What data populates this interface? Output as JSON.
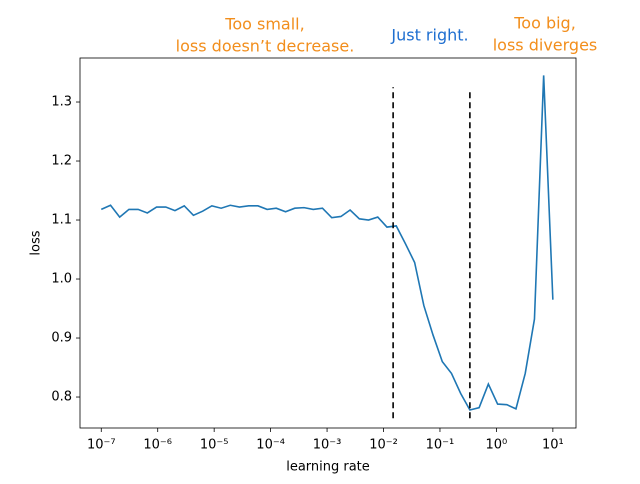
{
  "chart_data": {
    "type": "line",
    "xlabel": "learning rate",
    "ylabel": "loss",
    "xscale": "log",
    "xlim": [
      4.2e-08,
      25.7
    ],
    "ylim": [
      0.7475,
      1.3746
    ],
    "xticks": [
      {
        "value": 1e-07,
        "label": "10⁻⁷"
      },
      {
        "value": 1e-06,
        "label": "10⁻⁶"
      },
      {
        "value": 1e-05,
        "label": "10⁻⁵"
      },
      {
        "value": 0.0001,
        "label": "10⁻⁴"
      },
      {
        "value": 0.001,
        "label": "10⁻³"
      },
      {
        "value": 0.01,
        "label": "10⁻²"
      },
      {
        "value": 0.1,
        "label": "10⁻¹"
      },
      {
        "value": 1,
        "label": "10⁰"
      },
      {
        "value": 10,
        "label": "10¹"
      }
    ],
    "yticks": [
      0.8,
      0.9,
      {
        "value": 1,
        "label": "1.0"
      },
      1.1,
      1.2,
      1.3
    ],
    "grid": false,
    "x": [
      1e-07,
      1.46e-07,
      2.12e-07,
      3.09e-07,
      4.5e-07,
      6.55e-07,
      9.54e-07,
      1.39e-06,
      2.02e-06,
      2.95e-06,
      4.29e-06,
      6.25e-06,
      9.1e-06,
      1.33e-05,
      1.93e-05,
      2.81e-05,
      4.09e-05,
      5.96e-05,
      8.68e-05,
      0.000126,
      0.000184,
      0.000268,
      0.000391,
      0.000569,
      0.000829,
      0.00121,
      0.00176,
      0.00256,
      0.00373,
      0.00543,
      0.00791,
      0.0115,
      0.0168,
      0.0244,
      0.0356,
      0.0518,
      0.0754,
      0.11,
      0.16,
      0.233,
      0.339,
      0.494,
      0.72,
      1.05,
      1.53,
      2.22,
      3.24,
      4.72,
      6.87,
      10
    ],
    "series": [
      {
        "color": "#1f77b4",
        "values": [
          1.118,
          1.125,
          1.105,
          1.118,
          1.118,
          1.112,
          1.122,
          1.122,
          1.116,
          1.124,
          1.108,
          1.115,
          1.124,
          1.12,
          1.125,
          1.122,
          1.124,
          1.124,
          1.118,
          1.12,
          1.114,
          1.12,
          1.121,
          1.118,
          1.12,
          1.104,
          1.106,
          1.117,
          1.102,
          1.1,
          1.105,
          1.088,
          1.09,
          1.06,
          1.028,
          0.955,
          0.905,
          0.86,
          0.84,
          0.806,
          0.778,
          0.782,
          0.822,
          0.788,
          0.787,
          0.78,
          0.84,
          0.932,
          1.345,
          0.965
        ]
      }
    ],
    "vlines": [
      {
        "x": 0.0148,
        "ymin": 0.764,
        "ymax": 1.325,
        "color": "#000000"
      },
      {
        "x": 0.339,
        "ymin": 0.764,
        "ymax": 1.317,
        "color": "#000000"
      }
    ],
    "annotations": [
      {
        "lines": [
          "Too small,",
          "loss doesn’t decrease."
        ],
        "color": "#f28e1c"
      },
      {
        "lines": [
          "Just right."
        ],
        "color": "#1f6fd0"
      },
      {
        "lines": [
          "Too big,",
          "loss diverges"
        ],
        "color": "#f28e1c"
      }
    ]
  }
}
